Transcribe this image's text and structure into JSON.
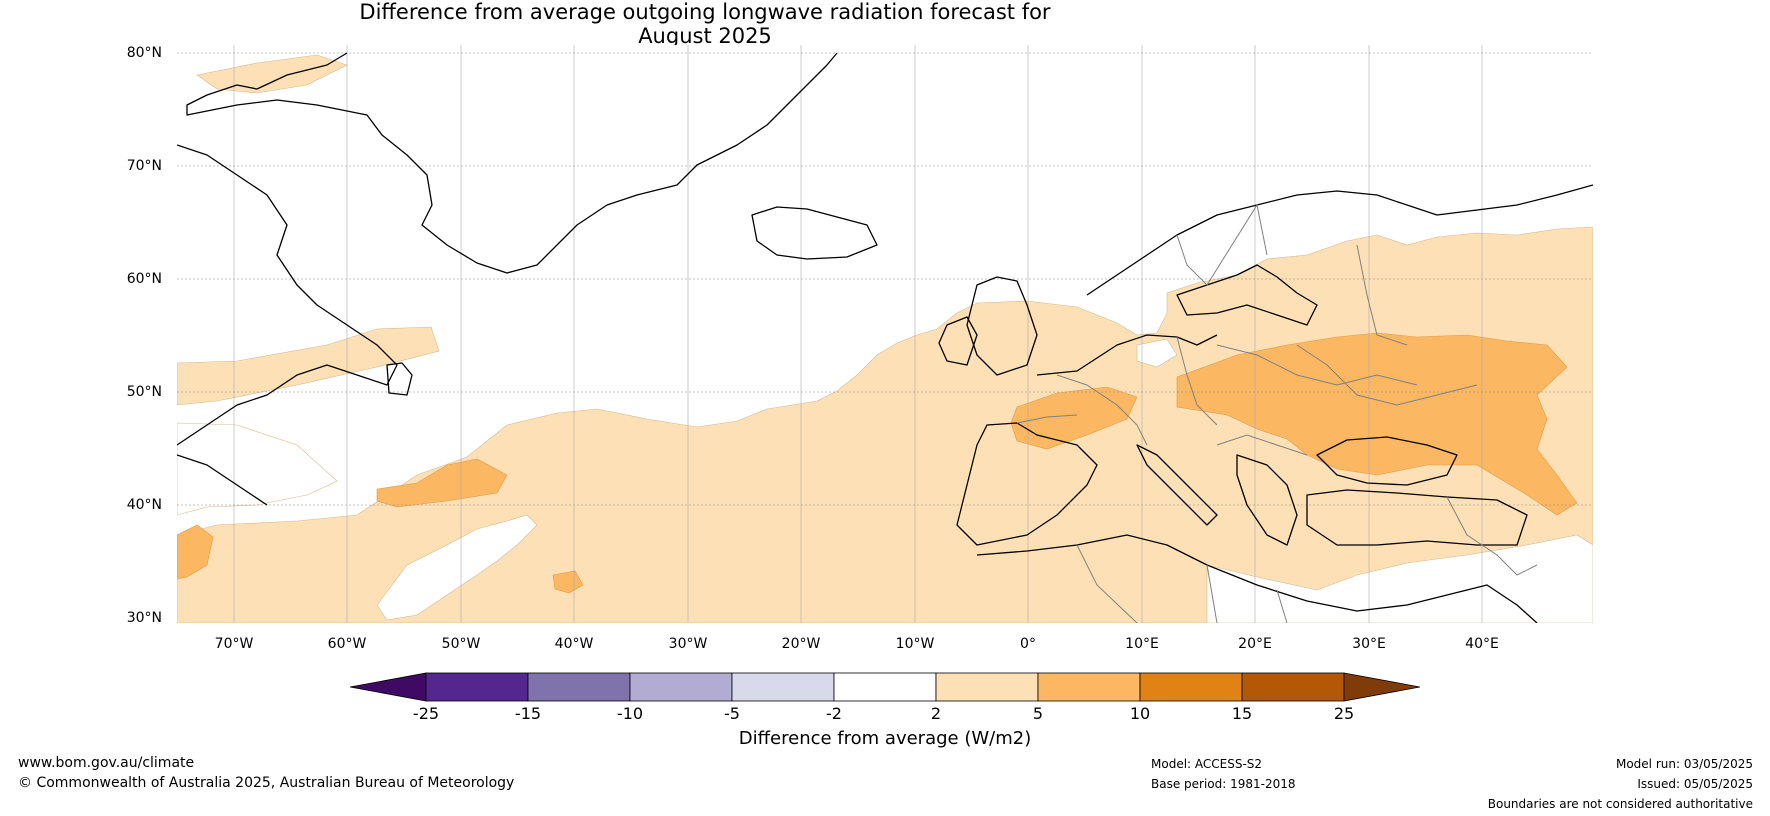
{
  "title_line1": "Difference from average outgoing longwave radiation forecast for",
  "title_line2": "August 2025",
  "lat_labels": [
    "80°N",
    "70°N",
    "60°N",
    "50°N",
    "40°N",
    "30°N"
  ],
  "lon_labels": [
    "70°W",
    "60°W",
    "50°W",
    "40°W",
    "30°W",
    "20°W",
    "10°W",
    "0°",
    "10°E",
    "20°E",
    "30°E",
    "40°E"
  ],
  "colorbar": {
    "ticks": [
      "-25",
      "-15",
      "-10",
      "-5",
      "-2",
      "2",
      "5",
      "10",
      "15",
      "25"
    ],
    "colors": [
      "#3f0a63",
      "#54278f",
      "#8073ac",
      "#b2abd2",
      "#d8daeb",
      "#ffffff",
      "#fde0b6",
      "#fbb762",
      "#e08214",
      "#b35806",
      "#7f3b08"
    ],
    "label": "Difference from average (W/m2)"
  },
  "footer": {
    "url": "www.bom.gov.au/climate",
    "copyright": "© Commonwealth of Australia 2025, Australian Bureau of Meteorology",
    "model": "Model: ACCESS-S2",
    "base_period": "Base period: 1981-2018",
    "model_run": "Model run: 03/05/2025",
    "issued": "Issued: 05/05/2025",
    "disclaimer": "Boundaries are not considered authoritative"
  },
  "map_colors": {
    "light_anomaly": "#fde0b6",
    "medium_anomaly": "#fbb762",
    "coast": "#000000",
    "border": "#808080",
    "grid": "#888888"
  }
}
